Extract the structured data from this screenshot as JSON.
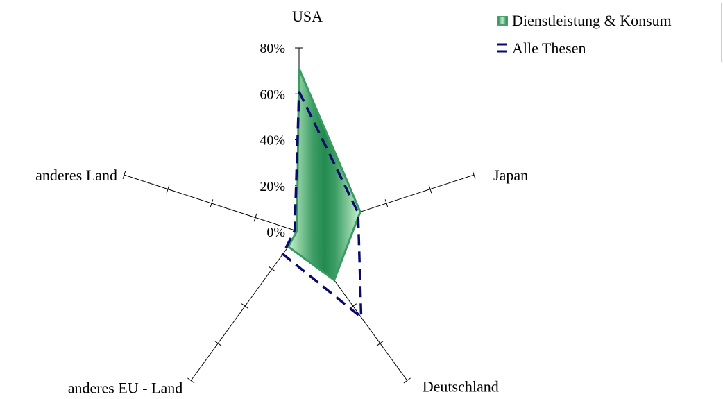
{
  "chart_data": {
    "type": "radar",
    "categories": [
      "USA",
      "Japan",
      "Deutschland",
      "anderes EU - Land",
      "anderes Land"
    ],
    "series": [
      {
        "name": "Dienstleistung & Konsum",
        "values": [
          0.71,
          0.28,
          0.26,
          0.08,
          0.01
        ],
        "color": "#3a9a62",
        "style": "filled-gradient"
      },
      {
        "name": "Alle Thesen",
        "values": [
          0.61,
          0.27,
          0.46,
          0.12,
          0.02
        ],
        "color": "#0a0a6e",
        "style": "dashed"
      }
    ],
    "r_ticks": [
      "0%",
      "20%",
      "40%",
      "60%",
      "80%"
    ],
    "r_range": [
      0,
      0.8
    ],
    "legend_position": "top-right"
  }
}
